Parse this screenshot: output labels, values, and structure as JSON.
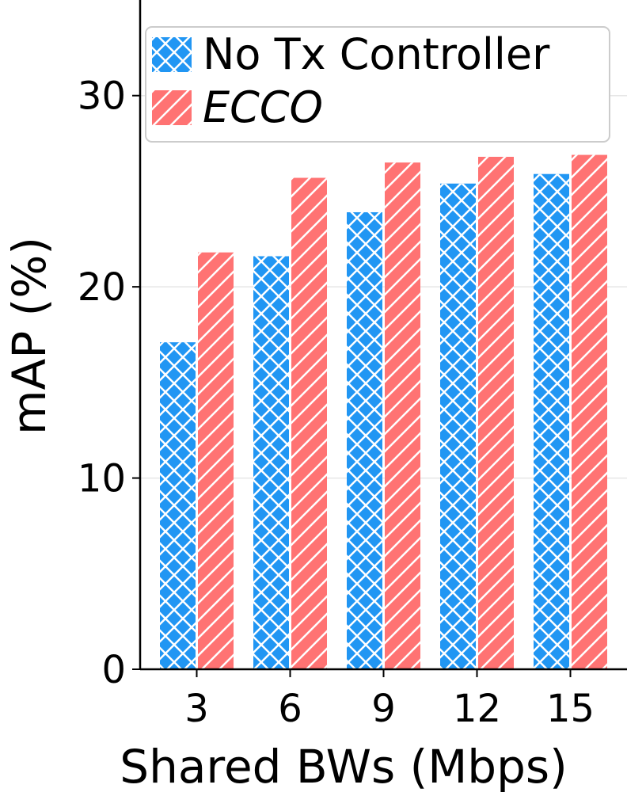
{
  "chart_data": {
    "type": "bar",
    "title": "",
    "xlabel": "Shared BWs (Mbps)",
    "ylabel": "mAP (%)",
    "categories": [
      "3",
      "6",
      "9",
      "12",
      "15"
    ],
    "ylim": [
      0,
      35
    ],
    "yticks": [
      "0",
      "10",
      "20",
      "30"
    ],
    "grid": "horizontal",
    "legend_position": "top",
    "series": [
      {
        "name": "No Tx Controller",
        "values": [
          17.1,
          21.6,
          23.9,
          25.4,
          25.9
        ],
        "color": "#2196F3",
        "hatch": "cross"
      },
      {
        "name": "ECCO",
        "values": [
          21.8,
          25.7,
          26.5,
          26.8,
          26.9
        ],
        "color": "#FF7373",
        "hatch": "diagonal",
        "italic": true
      }
    ]
  }
}
